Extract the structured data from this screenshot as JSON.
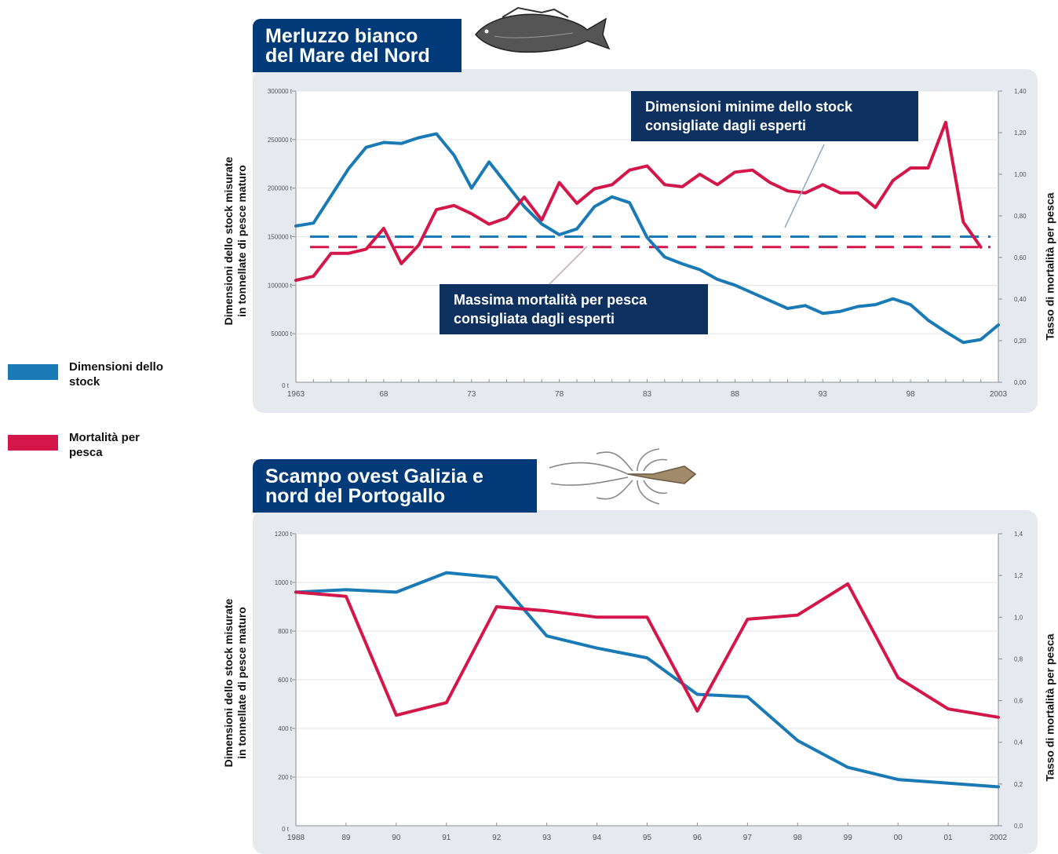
{
  "legend": {
    "stock_label": "Dimensioni dello stock",
    "mortality_label": "Mortalità per pesca",
    "stock_color": "#1a7ab5",
    "mortality_color": "#d4174a"
  },
  "chart_data": [
    {
      "type": "line",
      "title": "Merluzzo bianco del Mare del Nord",
      "title_lines": [
        "Merluzzo bianco",
        "del Mare del Nord"
      ],
      "ylabel_left_lines": [
        "Dimensioni dello stock misurate",
        "in tonnellate di pesce maturo"
      ],
      "ylabel_right": "Tasso di mortalità per pesca",
      "x_range": [
        1963,
        2003
      ],
      "x_ticks": [
        1963,
        1968,
        1973,
        1978,
        1983,
        1988,
        1993,
        1998,
        2003
      ],
      "x_tick_labels": [
        "1963",
        "68",
        "73",
        "78",
        "83",
        "88",
        "93",
        "98",
        "2003"
      ],
      "x_origin_label": "0 t",
      "y_left_range": [
        0,
        300000
      ],
      "y_left_ticks": [
        50000,
        100000,
        150000,
        200000,
        250000,
        300000
      ],
      "y_left_tick_labels": [
        "50000 t",
        "100000 t",
        "150000 t",
        "200000 t",
        "250000 t",
        "300000 t"
      ],
      "y_right_range": [
        0,
        1.4
      ],
      "y_right_ticks": [
        0,
        0.2,
        0.4,
        0.6,
        0.8,
        1.0,
        1.2,
        1.4
      ],
      "y_right_tick_labels": [
        "0,00",
        "0,20",
        "0,40",
        "0,60",
        "0,80",
        "1,00",
        "1,20",
        "1,40"
      ],
      "grid": true,
      "series": [
        {
          "name": "Dimensioni dello stock",
          "axis": "left",
          "color": "#1a7ab5",
          "x": [
            1963,
            1964,
            1965,
            1966,
            1967,
            1968,
            1969,
            1970,
            1971,
            1972,
            1973,
            1974,
            1975,
            1976,
            1977,
            1978,
            1979,
            1980,
            1981,
            1982,
            1983,
            1984,
            1985,
            1986,
            1987,
            1988,
            1989,
            1990,
            1991,
            1992,
            1993,
            1994,
            1995,
            1996,
            1997,
            1998,
            1999,
            2000,
            2001,
            2002,
            2003
          ],
          "values": [
            161000,
            164000,
            192000,
            220000,
            242000,
            247000,
            246000,
            252000,
            256000,
            234000,
            200000,
            227000,
            204000,
            181000,
            163000,
            152000,
            158000,
            181000,
            191000,
            185000,
            149000,
            129000,
            122000,
            116000,
            106000,
            100000,
            92000,
            84000,
            76000,
            79000,
            71000,
            73000,
            78000,
            80000,
            86000,
            80000,
            64000,
            52000,
            41000,
            44000,
            59000
          ]
        },
        {
          "name": "Mortalità per pesca",
          "axis": "right",
          "color": "#d4174a",
          "x": [
            1963,
            1964,
            1965,
            1966,
            1967,
            1968,
            1969,
            1970,
            1971,
            1972,
            1973,
            1974,
            1975,
            1976,
            1977,
            1978,
            1979,
            1980,
            1981,
            1982,
            1983,
            1984,
            1985,
            1986,
            1987,
            1988,
            1989,
            1990,
            1991,
            1992,
            1993,
            1994,
            1995,
            1996,
            1997,
            1998,
            1999,
            2000,
            2001,
            2002,
            2003
          ],
          "values": [
            0.49,
            0.51,
            0.62,
            0.62,
            0.64,
            0.74,
            0.57,
            0.66,
            0.83,
            0.85,
            0.81,
            0.76,
            0.79,
            0.89,
            0.78,
            0.96,
            0.86,
            0.93,
            0.95,
            1.02,
            1.04,
            0.95,
            0.94,
            1.0,
            0.95,
            1.01,
            1.02,
            0.96,
            0.92,
            0.91,
            0.95,
            0.91,
            0.91,
            0.84,
            0.97,
            1.03,
            1.03,
            1.25,
            0.77,
            0.65,
            null
          ]
        }
      ],
      "reference_lines": [
        {
          "name": "Dimensioni minime dello stock consigliate dagli esperti",
          "axis": "left",
          "value": 150000,
          "color": "#1a7ab5",
          "dashed": true
        },
        {
          "name": "Massima mortalità per pesca consigliata dagli esperti",
          "axis": "right",
          "value": 0.65,
          "color": "#d4174a",
          "dashed": true
        }
      ],
      "annotations": [
        {
          "lines": [
            "Dimensioni minime dello stock",
            "consigliate dagli esperti"
          ]
        },
        {
          "lines": [
            "Massima mortalità per pesca",
            "consigliata dagli esperti"
          ]
        }
      ]
    },
    {
      "type": "line",
      "title": "Scampo ovest Galizia e nord del Portogallo",
      "title_lines": [
        "Scampo ovest Galizia e",
        "nord del Portogallo"
      ],
      "ylabel_left_lines": [
        "Dimensioni dello stock misurate",
        "in tonnellate di pesce maturo"
      ],
      "ylabel_right": "Tasso di mortalità per pesca",
      "x_range": [
        1988,
        2002
      ],
      "x_ticks": [
        1988,
        1989,
        1990,
        1991,
        1992,
        1993,
        1994,
        1995,
        1996,
        1997,
        1998,
        1999,
        2000,
        2001,
        2002
      ],
      "x_tick_labels": [
        "1988",
        "89",
        "90",
        "91",
        "92",
        "93",
        "94",
        "95",
        "96",
        "97",
        "98",
        "99",
        "00",
        "01",
        "2002"
      ],
      "x_origin_label": "0 t",
      "y_left_range": [
        0,
        1200
      ],
      "y_left_ticks": [
        200,
        400,
        600,
        800,
        1000,
        1200
      ],
      "y_left_tick_labels": [
        "200 t",
        "400 t",
        "600 t",
        "800 t",
        "1000 t",
        "1200 t"
      ],
      "y_right_range": [
        0,
        1.4
      ],
      "y_right_ticks": [
        0,
        0.2,
        0.4,
        0.6,
        0.8,
        1.0,
        1.2,
        1.4
      ],
      "y_right_tick_labels": [
        "0,0",
        "0,2",
        "0,4",
        "0,6",
        "0,8",
        "1,0",
        "1,2",
        "1,4"
      ],
      "grid": true,
      "series": [
        {
          "name": "Dimensioni dello stock",
          "axis": "left",
          "color": "#1a7ab5",
          "x": [
            1988,
            1989,
            1990,
            1991,
            1992,
            1993,
            1994,
            1995,
            1996,
            1997,
            1998,
            1999,
            2000,
            2001,
            2002
          ],
          "values": [
            960,
            970,
            960,
            1040,
            1020,
            780,
            730,
            690,
            540,
            530,
            350,
            240,
            190,
            175,
            160
          ]
        },
        {
          "name": "Mortalità per pesca",
          "axis": "right",
          "color": "#d4174a",
          "x": [
            1988,
            1989,
            1990,
            1991,
            1992,
            1993,
            1994,
            1995,
            1996,
            1997,
            1998,
            1999,
            2000,
            2001,
            2002
          ],
          "values": [
            1.12,
            1.1,
            0.53,
            0.59,
            1.05,
            1.03,
            1.0,
            1.0,
            0.55,
            0.99,
            1.01,
            1.16,
            0.71,
            0.56,
            0.52
          ]
        }
      ]
    }
  ]
}
